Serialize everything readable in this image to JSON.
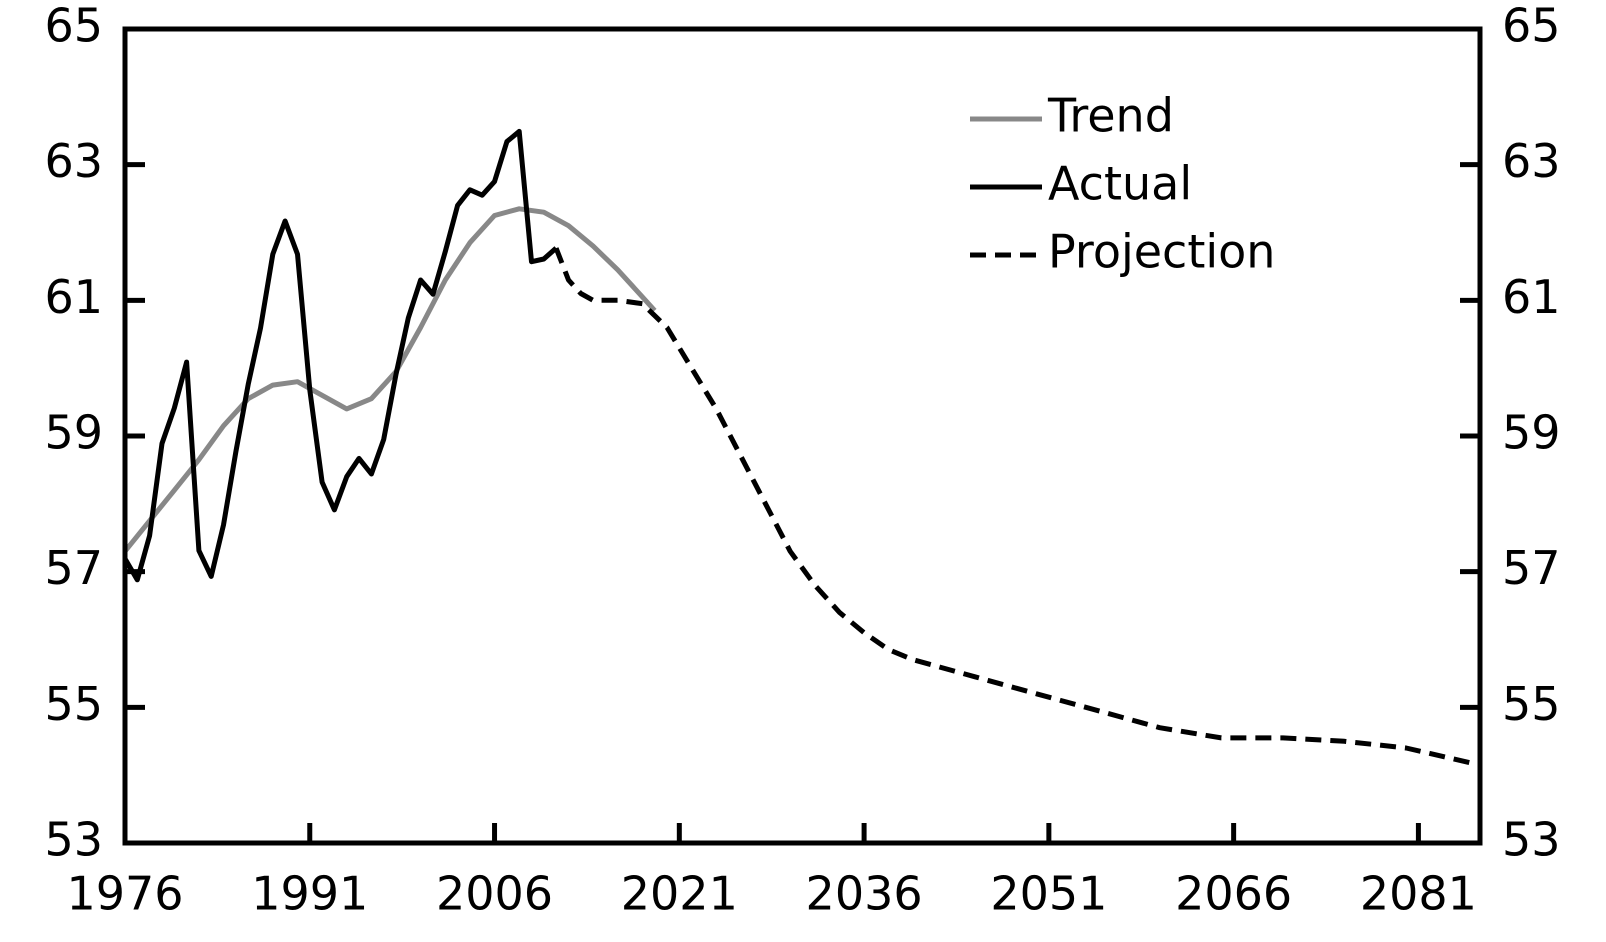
{
  "chart_data": {
    "type": "line",
    "xlim": [
      1976,
      2086
    ],
    "xticks": [
      1976,
      1991,
      2006,
      2021,
      2036,
      2051,
      2066,
      2081
    ],
    "ylim": [
      53,
      65
    ],
    "yticks": [
      53,
      55,
      57,
      59,
      61,
      63,
      65
    ],
    "legend": "upper right",
    "series": [
      {
        "name": "Trend",
        "color": "#888888",
        "dash": false,
        "x": [
          1976,
          1978,
          1980,
          1982,
          1984,
          1986,
          1988,
          1990,
          1992,
          1994,
          1996,
          1998,
          2000,
          2002,
          2004,
          2006,
          2008,
          2010,
          2012,
          2014,
          2016,
          2018,
          2019
        ],
        "values": [
          57.3,
          57.75,
          58.2,
          58.65,
          59.15,
          59.55,
          59.75,
          59.8,
          59.6,
          59.4,
          59.55,
          59.95,
          60.6,
          61.3,
          61.85,
          62.25,
          62.35,
          62.3,
          62.1,
          61.8,
          61.45,
          61.05,
          60.85
        ]
      },
      {
        "name": "Actual",
        "color": "#000000",
        "dash": false,
        "x": [
          1976,
          1977,
          1978,
          1979,
          1980,
          1981,
          1982,
          1983,
          1984,
          1985,
          1986,
          1987,
          1988,
          1989,
          1990,
          1991,
          1992,
          1993,
          1994,
          1995,
          1996,
          1997,
          1998,
          1999,
          2000,
          2001,
          2002,
          2003,
          2004,
          2005,
          2006,
          2007,
          2008,
          2009,
          2010,
          2011
        ],
        "values": [
          57.19,
          56.88,
          57.53,
          58.89,
          59.41,
          60.09,
          57.31,
          56.93,
          57.69,
          58.77,
          59.76,
          60.59,
          61.68,
          62.17,
          61.68,
          59.68,
          58.32,
          57.91,
          58.4,
          58.67,
          58.44,
          58.95,
          59.91,
          60.74,
          61.3,
          61.09,
          61.72,
          62.4,
          62.63,
          62.55,
          62.75,
          63.34,
          63.49,
          61.57,
          61.61,
          61.77
        ]
      },
      {
        "name": "Projection",
        "color": "#000000",
        "dash": true,
        "x": [
          2011,
          2012,
          2013,
          2014,
          2016,
          2018,
          2020,
          2022,
          2024,
          2026,
          2028,
          2030,
          2032,
          2034,
          2036,
          2038,
          2040,
          2045,
          2050,
          2055,
          2060,
          2065,
          2070,
          2075,
          2080,
          2086
        ],
        "values": [
          61.77,
          61.3,
          61.1,
          61.0,
          61.0,
          60.95,
          60.6,
          60.0,
          59.4,
          58.7,
          58.0,
          57.3,
          56.8,
          56.4,
          56.1,
          55.85,
          55.7,
          55.45,
          55.2,
          54.95,
          54.7,
          54.55,
          54.55,
          54.5,
          54.4,
          54.15
        ]
      }
    ]
  }
}
